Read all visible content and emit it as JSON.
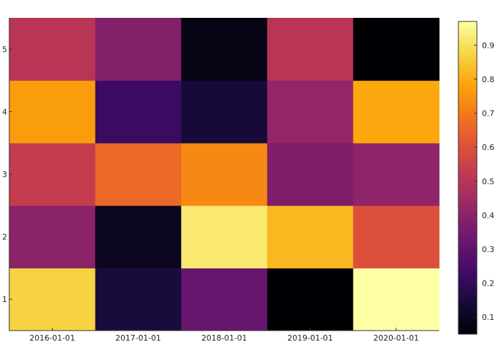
{
  "chart_data": {
    "type": "heatmap",
    "x_labels": [
      "2016-01-01",
      "2017-01-01",
      "2018-01-01",
      "2019-01-01",
      "2020-01-01"
    ],
    "y_labels": [
      "1",
      "2",
      "3",
      "4",
      "5"
    ],
    "values": [
      [
        0.87,
        0.15,
        0.32,
        0.05,
        0.97
      ],
      [
        0.4,
        0.1,
        0.92,
        0.82,
        0.6
      ],
      [
        0.53,
        0.66,
        0.73,
        0.37,
        0.41
      ],
      [
        0.77,
        0.22,
        0.14,
        0.42,
        0.79
      ],
      [
        0.5,
        0.38,
        0.08,
        0.5,
        0.05
      ]
    ],
    "colorscale": "inferno",
    "colorbar": {
      "range": [
        0.05,
        0.97
      ],
      "ticks": [
        "0.1",
        "0.2",
        "0.3",
        "0.4",
        "0.5",
        "0.6",
        "0.7",
        "0.8",
        "0.9"
      ],
      "tick_values": [
        0.1,
        0.2,
        0.3,
        0.4,
        0.5,
        0.6,
        0.7,
        0.8,
        0.9
      ]
    },
    "title": "",
    "xlabel": "",
    "ylabel": "",
    "grid": false
  }
}
